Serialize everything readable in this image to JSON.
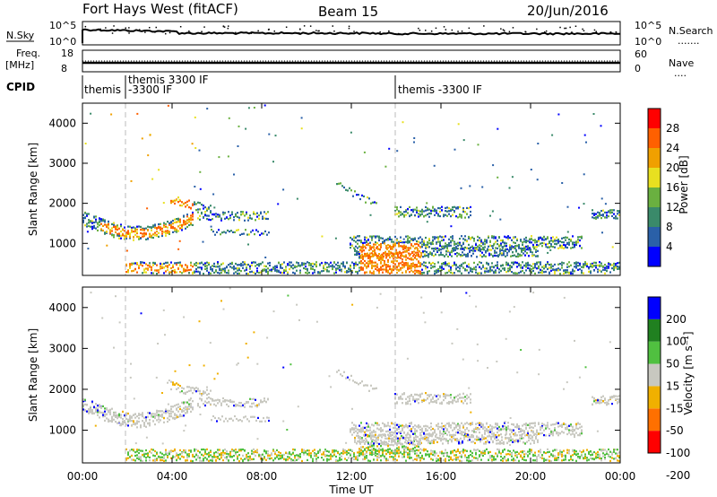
{
  "header": {
    "title": "Fort Hays West (fitACF)",
    "beam": "Beam 15",
    "date": "20/Jun/2016"
  },
  "panels": {
    "nsky": {
      "left_label": "N.Sky",
      "ticks_left": [
        "10^5",
        "10^0"
      ],
      "ticks_right": [
        "10^5",
        "10^0"
      ],
      "right_label": "N.Search",
      "right_sub": "......."
    },
    "freq": {
      "left_label_1": "Freq.",
      "left_label_2": "[MHz]",
      "ticks_left": [
        "18",
        "8"
      ],
      "ticks_right": [
        "60",
        "0"
      ],
      "right_label": "Nave",
      "right_sub": "...."
    },
    "cpid": {
      "label": "CPID",
      "segments": [
        "themis",
        "themis 3300 IF",
        "-3300 IF",
        "themis -3300 IF"
      ]
    }
  },
  "colors": {
    "bg": "#ffffff",
    "power_scale": [
      "#0000ff",
      "#2a60a8",
      "#3a8a6a",
      "#6ab040",
      "#e8e020",
      "#f0a000",
      "#ff6000",
      "#ff0000"
    ],
    "velocity_scale": [
      "#ff0000",
      "#ff7000",
      "#f0b000",
      "#c8c8c0",
      "#50c040",
      "#208020",
      "#0000ff"
    ]
  },
  "chart_data": [
    {
      "type": "heatmap",
      "name": "power",
      "ylabel": "Slant Range [km]",
      "yticks": [
        "1000",
        "2000",
        "3000",
        "4000"
      ],
      "ylim": [
        200,
        4500
      ],
      "colorbar_label": "Power [dB]",
      "colorbar_ticks": [
        "4",
        "8",
        "12",
        "16",
        "20",
        "24",
        "28"
      ],
      "clim": [
        0,
        32
      ]
    },
    {
      "type": "heatmap",
      "name": "velocity",
      "ylabel": "Slant Range [km]",
      "yticks": [
        "1000",
        "2000",
        "3000",
        "4000"
      ],
      "ylim": [
        200,
        4500
      ],
      "colorbar_label": "Velocity [m s⁻¹]",
      "colorbar_ticks": [
        "200",
        "100",
        "50",
        "15",
        "-15",
        "-50",
        "-100",
        "-200"
      ],
      "xlabel": "Time UT",
      "xticks": [
        "00:00",
        "04:00",
        "08:00",
        "12:00",
        "16:00",
        "20:00",
        "00:00"
      ],
      "xlim": [
        0,
        24
      ]
    }
  ]
}
